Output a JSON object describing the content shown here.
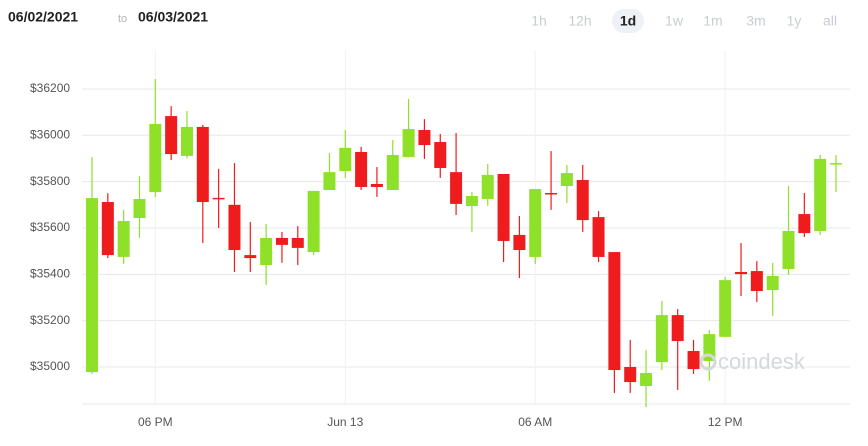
{
  "header": {
    "from": "06/02/2021",
    "separator": "to",
    "to": "06/03/2021",
    "ranges": [
      "1h",
      "12h",
      "1d",
      "1w",
      "1m",
      "3m",
      "1y",
      "all"
    ],
    "active_range": 2
  },
  "watermark": "coindesk",
  "chart_data": {
    "type": "candlestick",
    "categories": [
      null,
      null,
      null,
      null,
      "06 PM",
      null,
      null,
      null,
      null,
      null,
      null,
      null,
      null,
      null,
      null,
      null,
      "Jun 13",
      null,
      null,
      null,
      null,
      null,
      null,
      null,
      null,
      null,
      null,
      null,
      "06 AM",
      null,
      null,
      null,
      null,
      null,
      null,
      null,
      null,
      null,
      null,
      null,
      "12 PM",
      null,
      null,
      null,
      null,
      null,
      null,
      null
    ],
    "open": [
      34978,
      35712,
      35475,
      35643,
      35755,
      36083,
      35911,
      36036,
      35730,
      35700,
      35483,
      35440,
      35557,
      35557,
      35496,
      35764,
      35846,
      35928,
      35790,
      35764,
      35906,
      36023,
      35971,
      35841,
      35695,
      35725,
      35833,
      35570,
      35475,
      35751,
      35781,
      35807,
      35647,
      35496,
      35000,
      34918,
      35021,
      35224,
      35069,
      35026,
      35130,
      35410,
      35414,
      35332,
      35423,
      35660,
      35587,
      35876
    ],
    "high": [
      35906,
      35750,
      35678,
      35824,
      36243,
      36126,
      36105,
      36045,
      35855,
      35880,
      35626,
      35617,
      35583,
      35608,
      35760,
      35924,
      36023,
      35950,
      35863,
      35980,
      36157,
      36070,
      36006,
      36010,
      35755,
      35876,
      35833,
      35652,
      35768,
      35932,
      35872,
      35872,
      35673,
      35496,
      35117,
      35073,
      35285,
      35250,
      35117,
      35160,
      35388,
      35535,
      35457,
      35449,
      35781,
      35751,
      35915,
      35915
    ],
    "low": [
      34970,
      35470,
      35445,
      35557,
      35734,
      35893,
      35900,
      35535,
      35600,
      35410,
      35410,
      35354,
      35450,
      35440,
      35483,
      35764,
      35816,
      35764,
      35734,
      35764,
      35906,
      35898,
      35816,
      35656,
      35583,
      35695,
      35453,
      35384,
      35445,
      35678,
      35708,
      35583,
      35453,
      34888,
      34888,
      34827,
      34987,
      34901,
      34970,
      34940,
      35130,
      35306,
      35280,
      35220,
      35397,
      35561,
      35570,
      35755
    ],
    "close": [
      35729,
      35483,
      35630,
      35725,
      36049,
      35919,
      36036,
      35712,
      35725,
      35505,
      35470,
      35557,
      35527,
      35514,
      35760,
      35841,
      35946,
      35777,
      35777,
      35915,
      36027,
      35958,
      35859,
      35704,
      35738,
      35829,
      35544,
      35505,
      35768,
      35745,
      35837,
      35634,
      35475,
      34987,
      34935,
      34974,
      35224,
      35112,
      34991,
      35142,
      35375,
      35401,
      35328,
      35393,
      35587,
      35578,
      35898,
      35880
    ],
    "up_color": "#8fe029",
    "down_color": "#ee1c1c",
    "ylim": [
      34860,
      36300
    ],
    "yticks": [
      {
        "value": 35000,
        "label": "$35000"
      },
      {
        "value": 35200,
        "label": "$35200"
      },
      {
        "value": 35400,
        "label": "$35400"
      },
      {
        "value": 35600,
        "label": "$35600"
      },
      {
        "value": 35800,
        "label": "$35800"
      },
      {
        "value": 36000,
        "label": "$36000"
      },
      {
        "value": 36200,
        "label": "$36200"
      }
    ],
    "grid": true
  }
}
